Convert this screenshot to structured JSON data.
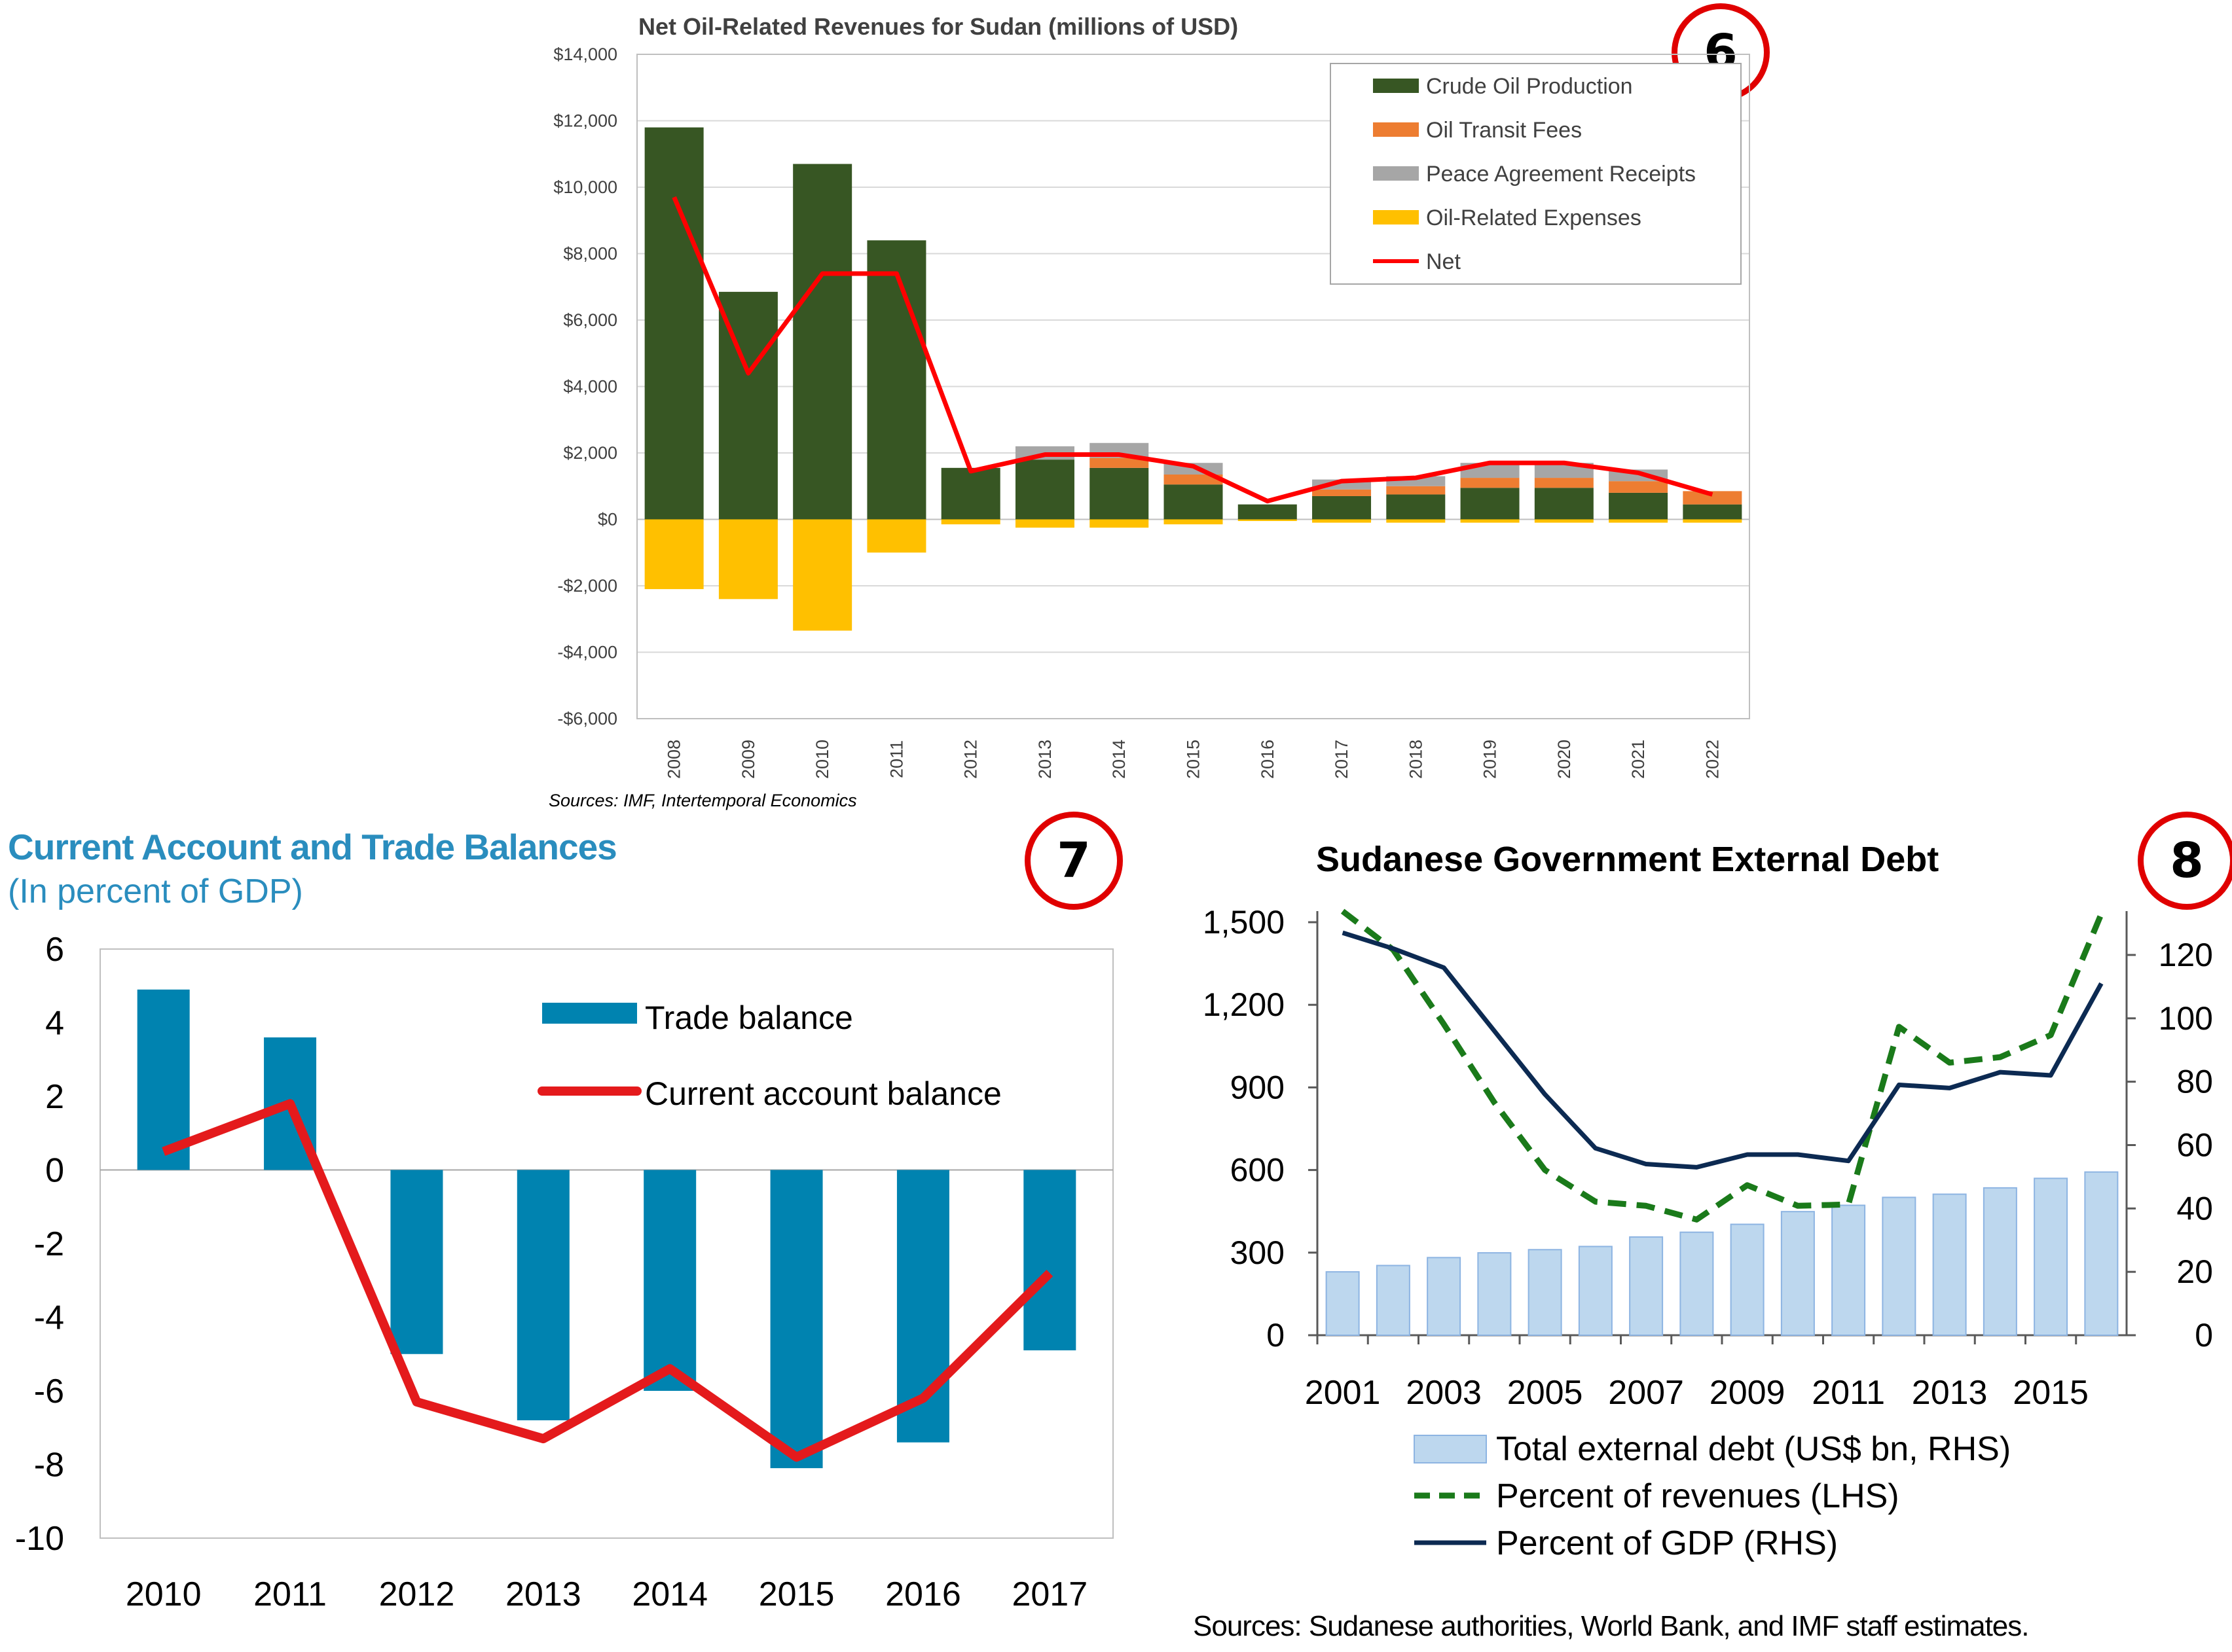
{
  "badges": [
    "6",
    "7",
    "8"
  ],
  "chart_data": [
    {
      "type": "bar",
      "title": "Net Oil-Related Revenues for Sudan (millions of USD)",
      "categories": [
        "2008",
        "2009",
        "2010",
        "2011",
        "2012",
        "2013",
        "2014",
        "2015",
        "2016",
        "2017",
        "2018",
        "2019",
        "2020",
        "2021",
        "2022"
      ],
      "series": [
        {
          "name": "Crude Oil Production",
          "color": "#375623",
          "values": [
            11800,
            6850,
            10700,
            8400,
            1550,
            1800,
            1550,
            1050,
            450,
            700,
            750,
            950,
            950,
            800,
            450
          ]
        },
        {
          "name": "Oil Transit Fees",
          "color": "#ed7d31",
          "values": [
            0,
            0,
            0,
            0,
            0,
            0,
            300,
            300,
            0,
            200,
            250,
            300,
            300,
            350,
            400
          ]
        },
        {
          "name": "Peace Agreement Receipts",
          "color": "#a6a6a6",
          "values": [
            0,
            0,
            0,
            0,
            0,
            400,
            450,
            350,
            0,
            300,
            300,
            450,
            450,
            350,
            0
          ]
        },
        {
          "name": "Oil-Related Expenses",
          "color": "#ffc000",
          "values": [
            -2100,
            -2400,
            -3350,
            -1000,
            -150,
            -250,
            -250,
            -150,
            -50,
            -100,
            -100,
            -100,
            -100,
            -100,
            -100
          ]
        },
        {
          "name": "Net",
          "type": "line",
          "color": "#ff0000",
          "values": [
            9700,
            4400,
            7400,
            7400,
            1450,
            1950,
            1950,
            1600,
            550,
            1150,
            1250,
            1700,
            1700,
            1400,
            750
          ]
        }
      ],
      "ylim": [
        -6000,
        14000
      ],
      "yticks": [
        -6000,
        -4000,
        -2000,
        0,
        2000,
        4000,
        6000,
        8000,
        10000,
        12000,
        14000
      ],
      "ytick_labels": [
        "-$6,000",
        "-$4,000",
        "-$2,000",
        "$0",
        "$2,000",
        "$4,000",
        "$6,000",
        "$8,000",
        "$10,000",
        "$12,000",
        "$14,000"
      ],
      "grid": true,
      "legend": "top-right",
      "sources": "Sources: IMF, Intertemporal Economics"
    },
    {
      "type": "bar",
      "title": "Current Account and Trade Balances",
      "subtitle": "(In percent of GDP)",
      "categories": [
        "2010",
        "2011",
        "2012",
        "2013",
        "2014",
        "2015",
        "2016",
        "2017"
      ],
      "series": [
        {
          "name": "Trade balance",
          "color": "#0083b0",
          "values": [
            4.9,
            3.6,
            -5.0,
            -6.8,
            -6.0,
            -8.1,
            -7.4,
            -4.9
          ]
        },
        {
          "name": "Current account balance",
          "type": "line",
          "color": "#e41a1c",
          "values": [
            0.5,
            1.8,
            -6.3,
            -7.3,
            -5.4,
            -7.8,
            -6.2,
            -2.8
          ]
        }
      ],
      "ylim": [
        -10,
        6
      ],
      "yticks": [
        -10,
        -8,
        -6,
        -4,
        -2,
        0,
        2,
        4,
        6
      ],
      "ytick_labels": [
        "-10",
        "-8",
        "-6",
        "-4",
        "-2",
        "0",
        "2",
        "4",
        "6"
      ],
      "grid": false,
      "legend": "top-right"
    },
    {
      "type": "bar",
      "title": "Sudanese Government External Debt",
      "categories": [
        "2001",
        "2002",
        "2003",
        "2004",
        "2005",
        "2006",
        "2007",
        "2008",
        "2009",
        "2010",
        "2011",
        "2012",
        "2013",
        "2014",
        "2015",
        "2016"
      ],
      "xtick_labels": [
        "2001",
        "2003",
        "2005",
        "2007",
        "2009",
        "2011",
        "2013",
        "2015"
      ],
      "series": [
        {
          "name": "Total external debt (US$ bn, RHS)",
          "axis": "right",
          "color": "#bdd7ee",
          "values": [
            20,
            22,
            24.5,
            26,
            27,
            28,
            31,
            32.5,
            35,
            39,
            41,
            43.5,
            44.5,
            46.5,
            49.5,
            51.5
          ]
        },
        {
          "name": "Percent of revenues (LHS)",
          "axis": "left",
          "type": "line",
          "style": "dashed",
          "color": "#1a7a1a",
          "values": [
            1540,
            1400,
            1130,
            845,
            600,
            485,
            470,
            420,
            545,
            470,
            475,
            1120,
            990,
            1010,
            1090,
            1530
          ]
        },
        {
          "name": "Percent of GDP (RHS)",
          "axis": "right",
          "type": "line",
          "color": "#0c2a52",
          "values": [
            127,
            122,
            116,
            96,
            76,
            59,
            54,
            53,
            57,
            57,
            55,
            79,
            78,
            83,
            82,
            111
          ]
        }
      ],
      "ylim_left": [
        0,
        1500
      ],
      "yticks_left": [
        0,
        300,
        600,
        900,
        1200,
        1500
      ],
      "ytick_labels_left": [
        "0",
        "300",
        "600",
        "900",
        "1,200",
        "1,500"
      ],
      "ylim_right": [
        0,
        130
      ],
      "yticks_right": [
        0,
        20,
        40,
        60,
        80,
        100,
        120
      ],
      "ytick_labels_right": [
        "0",
        "20",
        "40",
        "60",
        "80",
        "100",
        "120"
      ],
      "grid": false,
      "legend": "bottom",
      "sources": "Sources: Sudanese authorities, World Bank, and IMF staff estimates."
    }
  ]
}
